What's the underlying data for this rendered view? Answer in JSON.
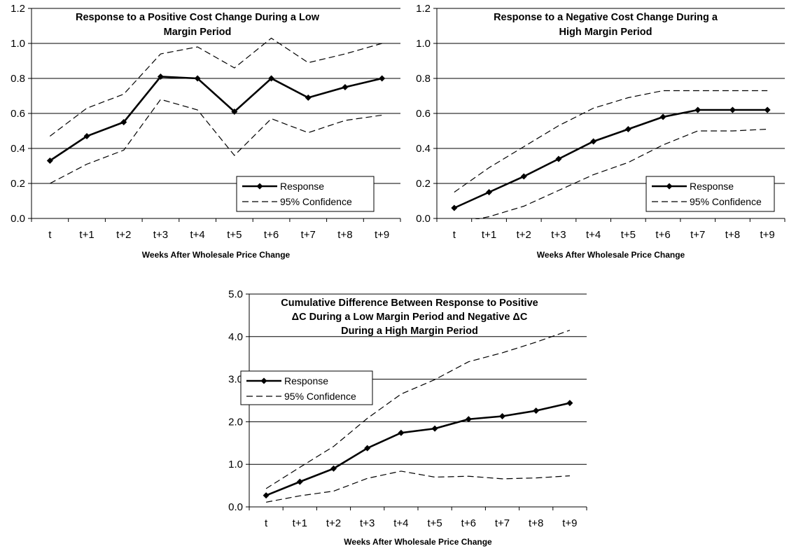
{
  "chart_data": [
    {
      "type": "line",
      "title": [
        "Response to a Positive Cost Change During a Low",
        "Margin Period"
      ],
      "xlabel": "Weeks After Wholesale Price Change",
      "ylabel": "",
      "categories": [
        "t",
        "t+1",
        "t+2",
        "t+3",
        "t+4",
        "t+5",
        "t+6",
        "t+7",
        "t+8",
        "t+9"
      ],
      "ylim": [
        0,
        1.2
      ],
      "yticks": [
        "0.0",
        "0.2",
        "0.4",
        "0.6",
        "0.8",
        "1.0",
        "1.2"
      ],
      "grid": true,
      "legend_position": "bottom-right",
      "series": [
        {
          "name": "Response",
          "style": "solid-diamond",
          "values": [
            0.33,
            0.47,
            0.55,
            0.81,
            0.8,
            0.61,
            0.8,
            0.69,
            0.75,
            0.8
          ]
        },
        {
          "name": "95% Confidence",
          "style": "dashed",
          "values": [
            0.47,
            0.63,
            0.71,
            0.94,
            0.98,
            0.86,
            1.03,
            0.89,
            0.94,
            1.0
          ]
        },
        {
          "name": "",
          "style": "dashed",
          "values": [
            0.2,
            0.31,
            0.39,
            0.68,
            0.62,
            0.36,
            0.57,
            0.49,
            0.56,
            0.59
          ]
        }
      ]
    },
    {
      "type": "line",
      "title": [
        "Response to a Negative Cost Change During a",
        "High Margin Period"
      ],
      "xlabel": "Weeks After Wholesale Price Change",
      "ylabel": "",
      "categories": [
        "t",
        "t+1",
        "t+2",
        "t+3",
        "t+4",
        "t+5",
        "t+6",
        "t+7",
        "t+8",
        "t+9"
      ],
      "ylim": [
        0,
        1.2
      ],
      "yticks": [
        "0.0",
        "0.2",
        "0.4",
        "0.6",
        "0.8",
        "1.0",
        "1.2"
      ],
      "grid": true,
      "legend_position": "bottom-right",
      "series": [
        {
          "name": "Response",
          "style": "solid-diamond",
          "values": [
            0.06,
            0.15,
            0.24,
            0.34,
            0.44,
            0.51,
            0.58,
            0.62,
            0.62,
            0.62
          ]
        },
        {
          "name": "95% Confidence",
          "style": "dashed",
          "values": [
            0.15,
            0.29,
            0.41,
            0.53,
            0.63,
            0.69,
            0.73,
            0.73,
            0.73,
            0.73
          ]
        },
        {
          "name": "",
          "style": "dashed",
          "values": [
            -0.03,
            0.01,
            0.07,
            0.16,
            0.25,
            0.32,
            0.42,
            0.5,
            0.5,
            0.51
          ]
        }
      ]
    },
    {
      "type": "line",
      "title": [
        "Cumulative Difference Between Response to Positive",
        "ΔC During a Low Margin Period and Negative ΔC",
        "During a High Margin Period"
      ],
      "xlabel": "Weeks After Wholesale Price Change",
      "ylabel": "",
      "categories": [
        "t",
        "t+1",
        "t+2",
        "t+3",
        "t+4",
        "t+5",
        "t+6",
        "t+7",
        "t+8",
        "t+9"
      ],
      "ylim": [
        0,
        5.0
      ],
      "yticks": [
        "0.0",
        "1.0",
        "2.0",
        "3.0",
        "4.0",
        "5.0"
      ],
      "grid": true,
      "legend_position": "middle-left",
      "series": [
        {
          "name": "Response",
          "style": "solid-diamond",
          "values": [
            0.27,
            0.59,
            0.9,
            1.38,
            1.74,
            1.84,
            2.06,
            2.13,
            2.26,
            2.44
          ]
        },
        {
          "name": "95% Confidence",
          "style": "dashed",
          "values": [
            0.43,
            0.93,
            1.42,
            2.08,
            2.65,
            2.99,
            3.41,
            3.62,
            3.87,
            4.15
          ]
        },
        {
          "name": "",
          "style": "dashed",
          "values": [
            0.11,
            0.26,
            0.37,
            0.67,
            0.84,
            0.7,
            0.72,
            0.66,
            0.68,
            0.73
          ]
        }
      ]
    }
  ]
}
